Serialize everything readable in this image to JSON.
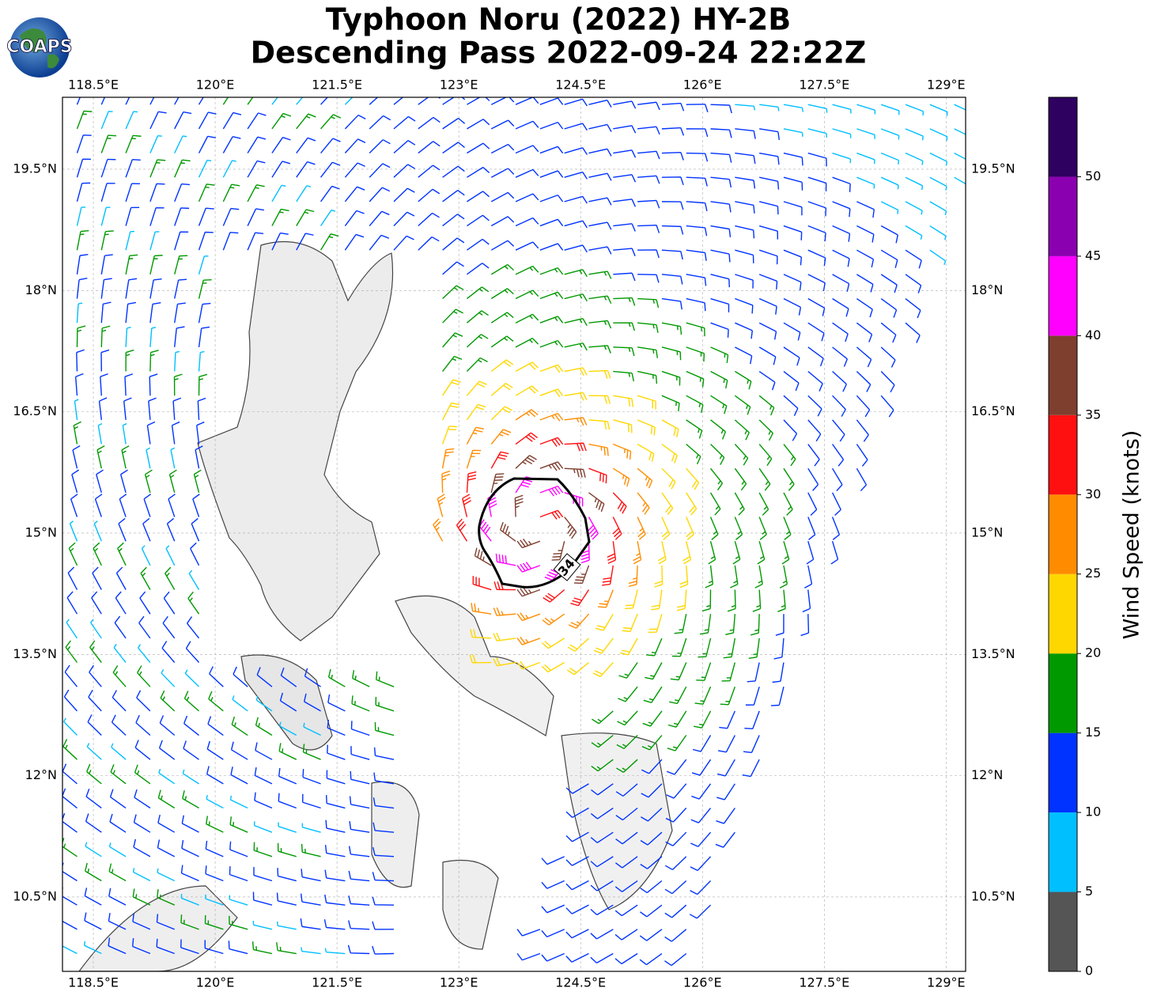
{
  "map": {
    "title": "Typhoon Noru (2022) HY-2B",
    "subtitle": "Descending Pass 2022-09-24 22:22Z",
    "logo": "COAPS",
    "xlim": [
      118.12,
      129.24
    ],
    "ylim": [
      9.58,
      20.39
    ],
    "xticks": [
      {
        "value": 118.5,
        "label": "118.5°E"
      },
      {
        "value": 120,
        "label": "120°E"
      },
      {
        "value": 121.5,
        "label": "121.5°E"
      },
      {
        "value": 123,
        "label": "123°E"
      },
      {
        "value": 124.5,
        "label": "124.5°E"
      },
      {
        "value": 126,
        "label": "126°E"
      },
      {
        "value": 127.5,
        "label": "127.5°E"
      },
      {
        "value": 129,
        "label": "129°E"
      }
    ],
    "yticks": [
      {
        "value": 10.5,
        "label": "10.5°N"
      },
      {
        "value": 12,
        "label": "12°N"
      },
      {
        "value": 13.5,
        "label": "13.5°N"
      },
      {
        "value": 15,
        "label": "15°N"
      },
      {
        "value": 16.5,
        "label": "16.5°N"
      },
      {
        "value": 18,
        "label": "18°N"
      },
      {
        "value": 19.5,
        "label": "19.5°N"
      }
    ],
    "contour_label": "34",
    "colorbar": {
      "label": "Wind Speed (knots)",
      "lim": [
        0,
        55
      ],
      "ticks": [
        0,
        5,
        10,
        15,
        20,
        25,
        30,
        35,
        40,
        45,
        50
      ],
      "colors": [
        "#555555",
        "#00bfff",
        "#0033ff",
        "#009900",
        "#ffd700",
        "#ff8c00",
        "#ff1010",
        "#7f3f2f",
        "#ff00ff",
        "#8a00b0",
        "#2e0060"
      ]
    }
  }
}
